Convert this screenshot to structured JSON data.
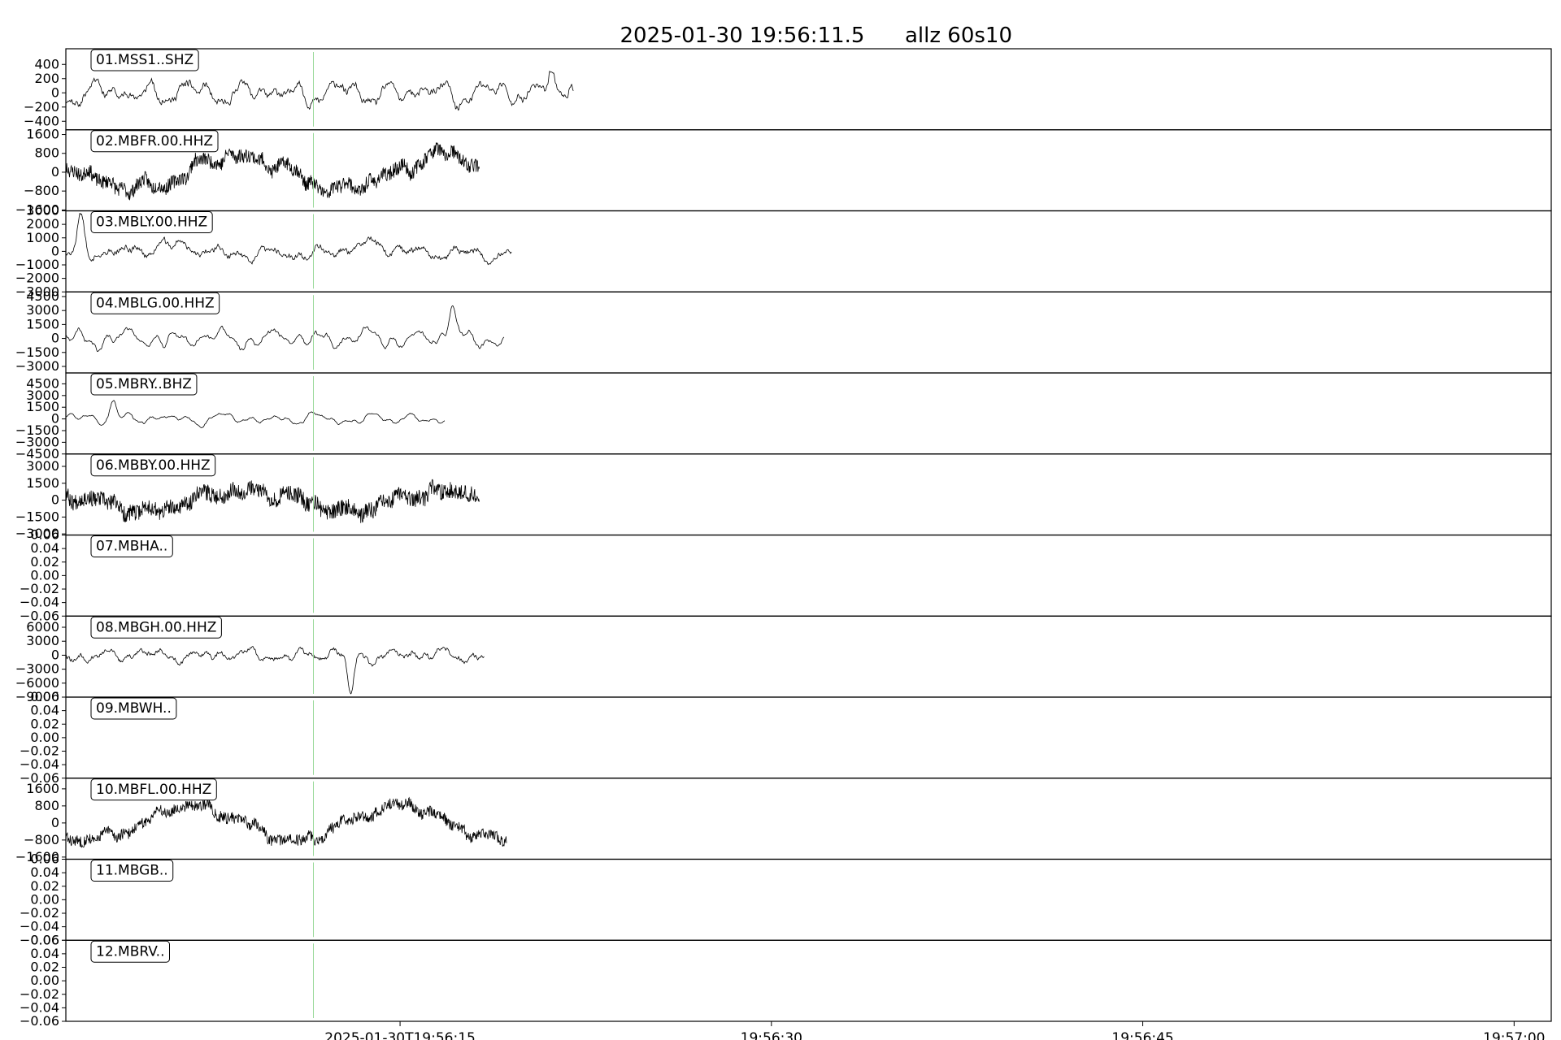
{
  "title": {
    "timestamp": "2025-01-30 19:56:11.5",
    "tag": "allz  60s10"
  },
  "colors": {
    "trace": "#000000",
    "marker": "#9ad99a",
    "frame": "#000000"
  },
  "chart_data": {
    "type": "line",
    "x_ticks": [
      "2025-01-30T19:56:15",
      "19:56:30",
      "19:56:45",
      "19:57:00"
    ],
    "x_tick_seconds": [
      15,
      30,
      45,
      60
    ],
    "x_range_seconds": [
      1.5,
      61.5
    ],
    "marker_seconds": 11.5,
    "grid": false,
    "panels": [
      {
        "label": "01.MSS1..SHZ",
        "yticks": [
          "400",
          "200",
          "0",
          "−200",
          "−400"
        ],
        "ylim": [
          -520,
          620
        ],
        "data_end_s": 22.0,
        "amplitude": 200,
        "peak": 480,
        "peak_s": 21.1,
        "drift": 0,
        "noise": 0.2,
        "smooth": 1,
        "seed": 11
      },
      {
        "label": "02.MBFR.00.HHZ",
        "yticks": [
          "1600",
          "800",
          "0",
          "−800",
          "−1600"
        ],
        "ylim": [
          -1640,
          1800
        ],
        "data_end_s": 18.2,
        "amplitude": 380,
        "peak": 0,
        "peak_s": 0,
        "drift": 700,
        "noise": 0.5,
        "smooth": 0,
        "seed": 23
      },
      {
        "label": "03.MBLY.00.HHZ",
        "yticks": [
          "3000",
          "2000",
          "1000",
          "0",
          "−1000",
          "−2000",
          "−3000"
        ],
        "ylim": [
          -3000,
          3000
        ],
        "data_end_s": 19.5,
        "amplitude": 650,
        "peak": 2400,
        "peak_s": 2.1,
        "drift": 300,
        "noise": 0.25,
        "smooth": 1,
        "seed": 37
      },
      {
        "label": "04.MBLG.00.HHZ",
        "yticks": [
          "4500",
          "3000",
          "1500",
          "0",
          "−1500",
          "−3000"
        ],
        "ylim": [
          -3700,
          5000
        ],
        "data_end_s": 19.2,
        "amplitude": 1200,
        "peak": 3900,
        "peak_s": 17.1,
        "drift": 0,
        "noise": 0.15,
        "smooth": 2,
        "seed": 41
      },
      {
        "label": "05.MBRY..BHZ",
        "yticks": [
          "4500",
          "3000",
          "1500",
          "0",
          "−1500",
          "−3000",
          "−4500"
        ],
        "ylim": [
          -4500,
          5900
        ],
        "data_end_s": 16.8,
        "amplitude": 900,
        "peak": 2800,
        "peak_s": 3.4,
        "drift": 0,
        "noise": 0.1,
        "smooth": 2,
        "seed": 53
      },
      {
        "label": "06.MBBY.00.HHZ",
        "yticks": [
          "3000",
          "1500",
          "0",
          "−1500",
          "−3000"
        ],
        "ylim": [
          -3100,
          4100
        ],
        "data_end_s": 18.2,
        "amplitude": 650,
        "peak": 0,
        "peak_s": 0,
        "drift": 900,
        "noise": 0.7,
        "smooth": 0,
        "seed": 67
      },
      {
        "label": "07.MBHA..",
        "yticks": [
          "0.06",
          "0.04",
          "0.02",
          "0.00",
          "−0.02",
          "−0.04",
          "−0.06"
        ],
        "ylim": [
          -0.06,
          0.06
        ],
        "data_end_s": 0,
        "amplitude": 0,
        "peak": 0,
        "peak_s": 0,
        "drift": 0,
        "noise": 0,
        "smooth": 0,
        "seed": 0
      },
      {
        "label": "08.MBGH.00.HHZ",
        "yticks": [
          "6000",
          "3000",
          "0",
          "−3000",
          "−6000",
          "−9000"
        ],
        "ylim": [
          -9000,
          8400
        ],
        "data_end_s": 18.4,
        "amplitude": 1700,
        "peak": -8600,
        "peak_s": 13.0,
        "drift": 0,
        "noise": 0.2,
        "smooth": 1,
        "seed": 79
      },
      {
        "label": "09.MBWH..",
        "yticks": [
          "0.06",
          "0.04",
          "0.02",
          "0.00",
          "−0.02",
          "−0.04",
          "−0.06"
        ],
        "ylim": [
          -0.06,
          0.06
        ],
        "data_end_s": 0,
        "amplitude": 0,
        "peak": 0,
        "peak_s": 0,
        "drift": 0,
        "noise": 0,
        "smooth": 0,
        "seed": 0
      },
      {
        "label": "10.MBFL.00.HHZ",
        "yticks": [
          "1600",
          "800",
          "0",
          "−800",
          "−1600"
        ],
        "ylim": [
          -1700,
          2100
        ],
        "data_end_s": 19.3,
        "amplitude": 300,
        "peak": 0,
        "peak_s": 0,
        "drift": 800,
        "noise": 0.55,
        "smooth": 0,
        "seed": 83
      },
      {
        "label": "11.MBGB..",
        "yticks": [
          "0.06",
          "0.04",
          "0.02",
          "0.00",
          "−0.02",
          "−0.04",
          "−0.06"
        ],
        "ylim": [
          -0.06,
          0.06
        ],
        "data_end_s": 0,
        "amplitude": 0,
        "peak": 0,
        "peak_s": 0,
        "drift": 0,
        "noise": 0,
        "smooth": 0,
        "seed": 0
      },
      {
        "label": "12.MBRV..",
        "yticks": [
          "0.06",
          "0.04",
          "0.02",
          "0.00",
          "−0.02",
          "−0.04",
          "−0.06"
        ],
        "ylim": [
          -0.06,
          0.06
        ],
        "data_end_s": 0,
        "amplitude": 0,
        "peak": 0,
        "peak_s": 0,
        "drift": 0,
        "noise": 0,
        "smooth": 0,
        "seed": 0
      }
    ]
  }
}
